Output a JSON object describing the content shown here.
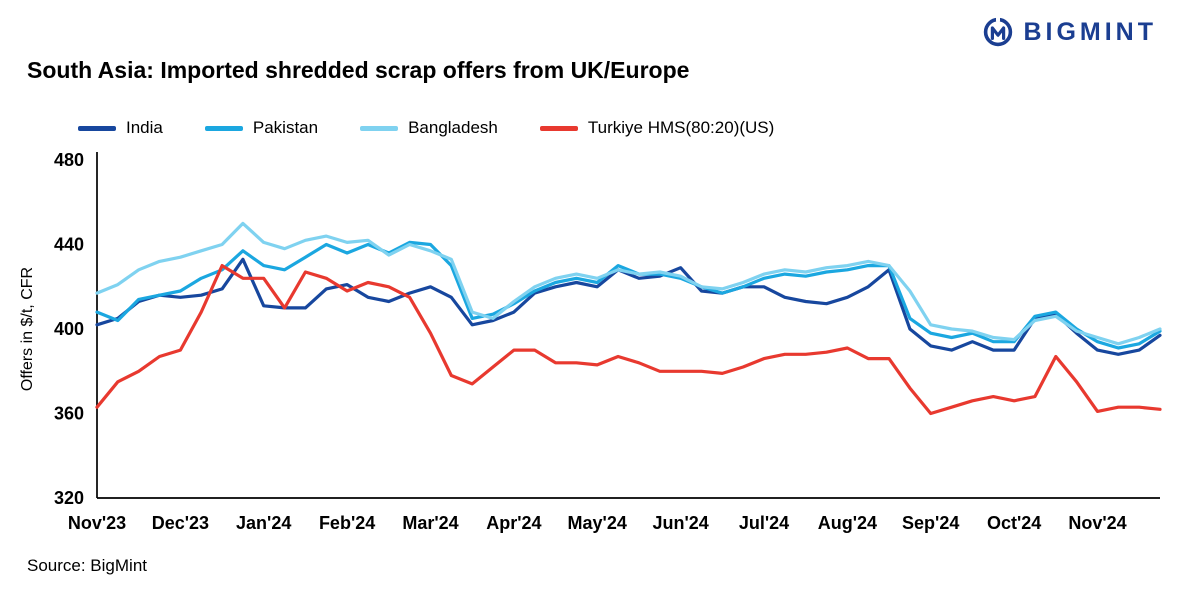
{
  "logo": {
    "text": "BIGMINT",
    "color": "#1b3e91"
  },
  "title": "South Asia: Imported shredded scrap offers from UK/Europe",
  "source": "Source: BigMint",
  "chart_data": {
    "type": "line",
    "title": "South Asia: Imported shredded scrap offers from UK/Europe",
    "xlabel": "",
    "ylabel": "Offers in $/t, CFR",
    "ylim": [
      320,
      480
    ],
    "yticks": [
      320,
      360,
      400,
      440,
      480
    ],
    "grid": false,
    "legend_position": "top",
    "x_tick_labels": [
      "Nov'23",
      "Dec'23",
      "Jan'24",
      "Feb'24",
      "Mar'24",
      "Apr'24",
      "May'24",
      "Jun'24",
      "Jul'24",
      "Aug'24",
      "Sep'24",
      "Oct'24",
      "Nov'24"
    ],
    "x_tick_every": 4,
    "series": [
      {
        "name": "India",
        "color": "#17479e",
        "values": [
          402,
          405,
          413,
          416,
          415,
          416,
          419,
          433,
          411,
          410,
          410,
          419,
          421,
          415,
          413,
          417,
          420,
          415,
          402,
          404,
          408,
          417,
          420,
          422,
          420,
          428,
          424,
          425,
          429,
          418,
          417,
          420,
          420,
          415,
          413,
          412,
          415,
          420,
          428,
          400,
          392,
          390,
          394,
          390,
          390,
          405,
          407,
          398,
          390,
          388,
          390,
          397
        ]
      },
      {
        "name": "Pakistan",
        "color": "#1ba7e0",
        "values": [
          408,
          404,
          414,
          416,
          418,
          424,
          428,
          437,
          430,
          428,
          434,
          440,
          436,
          440,
          436,
          441,
          440,
          430,
          405,
          407,
          412,
          418,
          422,
          424,
          422,
          430,
          426,
          426,
          424,
          420,
          417,
          420,
          424,
          426,
          425,
          427,
          428,
          430,
          430,
          405,
          398,
          396,
          398,
          394,
          394,
          406,
          408,
          400,
          394,
          391,
          393,
          399
        ]
      },
      {
        "name": "Bangladesh",
        "color": "#7fd2f0",
        "values": [
          417,
          421,
          428,
          432,
          434,
          437,
          440,
          450,
          441,
          438,
          442,
          444,
          441,
          442,
          435,
          440,
          437,
          433,
          408,
          405,
          413,
          420,
          424,
          426,
          424,
          428,
          426,
          427,
          425,
          420,
          419,
          422,
          426,
          428,
          427,
          429,
          430,
          432,
          430,
          418,
          402,
          400,
          399,
          396,
          395,
          404,
          406,
          399,
          396,
          393,
          396,
          400
        ]
      },
      {
        "name": "Turkiye HMS(80:20)(US)",
        "color": "#e8392f",
        "values": [
          363,
          375,
          380,
          387,
          390,
          408,
          430,
          424,
          424,
          410,
          427,
          424,
          418,
          422,
          420,
          415,
          398,
          378,
          374,
          382,
          390,
          390,
          384,
          384,
          383,
          387,
          384,
          380,
          380,
          380,
          379,
          382,
          386,
          388,
          388,
          389,
          391,
          386,
          386,
          372,
          360,
          363,
          366,
          368,
          366,
          368,
          387,
          375,
          361,
          363,
          363,
          362
        ]
      }
    ]
  }
}
